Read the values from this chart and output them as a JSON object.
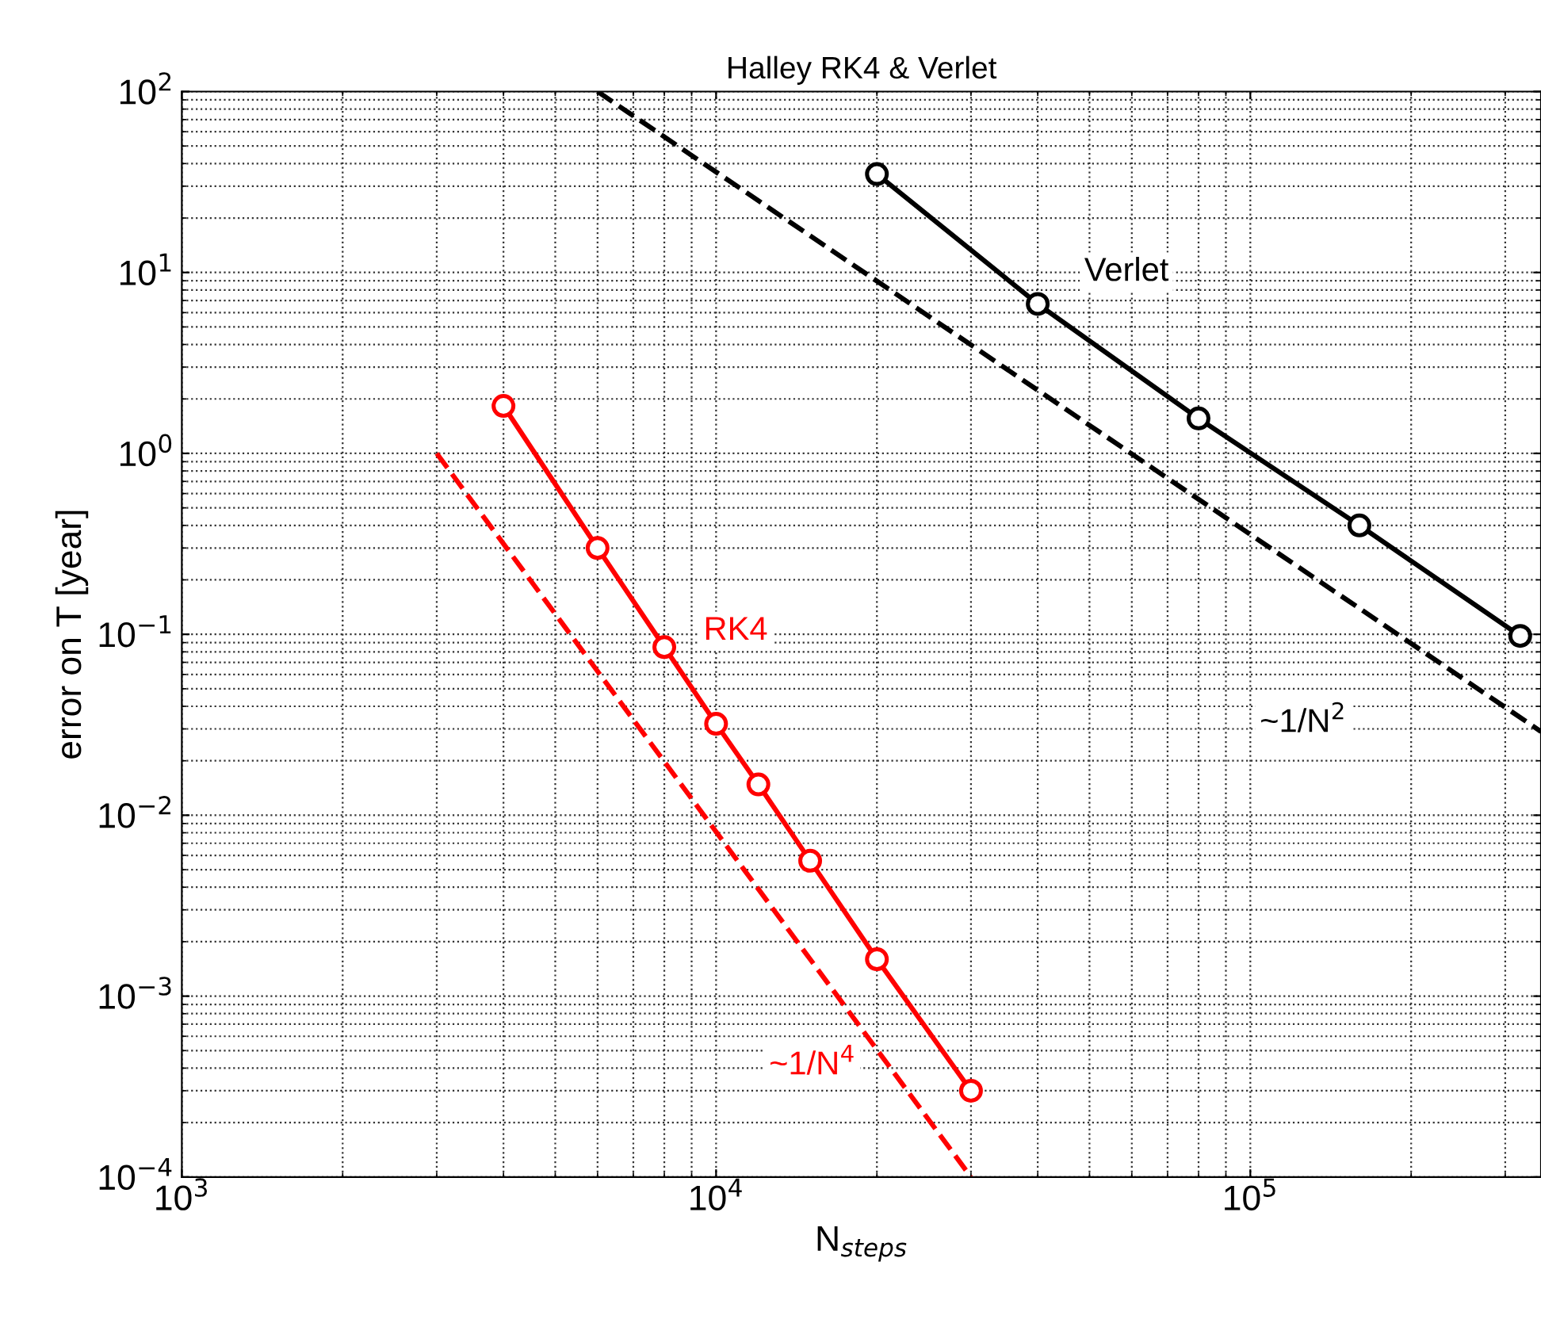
{
  "chart_data": {
    "type": "line",
    "title": "Halley RK4 & Verlet",
    "xlabel": "N$_{steps}$",
    "ylabel": "error on T [year]",
    "log": "xy",
    "grid": true,
    "legend": false,
    "xlim": [
      1000,
      350000
    ],
    "xticks": [
      {
        "value": 1000,
        "label": "10$^{3}$"
      },
      {
        "value": 10000,
        "label": "10$^{4}$"
      },
      {
        "value": 100000,
        "label": "10$^{5}$"
      }
    ],
    "ylim": [
      0.0001,
      100
    ],
    "yticks": [
      {
        "value": 0.0001,
        "label": "10$^{−4}$"
      },
      {
        "value": 0.001,
        "label": "10$^{−3}$"
      },
      {
        "value": 0.01,
        "label": "10$^{−2}$"
      },
      {
        "value": 0.1,
        "label": "10$^{−1}$"
      },
      {
        "value": 1,
        "label": "10$^{0}$"
      },
      {
        "value": 10,
        "label": "10$^{1}$"
      },
      {
        "value": 100,
        "label": "10$^{2}$"
      }
    ],
    "series": [
      {
        "name": "Verlet",
        "color": "#000000",
        "marker": "circle",
        "line_style": "solid",
        "x": [
          20000,
          40000,
          80000,
          160000,
          320000
        ],
        "values": [
          35,
          6.7,
          1.56,
          0.4,
          0.098
        ]
      },
      {
        "name": "RK4",
        "color": "#ff0000",
        "marker": "circle",
        "line_style": "solid",
        "x": [
          4000,
          6000,
          8000,
          10000,
          12000,
          15000,
          20000,
          30000
        ],
        "values": [
          1.83,
          0.3,
          0.085,
          0.032,
          0.0148,
          0.0056,
          0.0016,
          0.0003
        ]
      },
      {
        "name": "~1/N$^{2}$",
        "color": "#000000",
        "marker": "none",
        "line_style": "dashed",
        "x": [
          6000,
          350000
        ],
        "values": [
          100,
          0.029
        ]
      },
      {
        "name": "~1/N$^{4}$",
        "color": "#ff0000",
        "marker": "none",
        "line_style": "dashed",
        "x": [
          3000,
          30000
        ],
        "values": [
          1,
          0.0001
        ]
      }
    ]
  }
}
